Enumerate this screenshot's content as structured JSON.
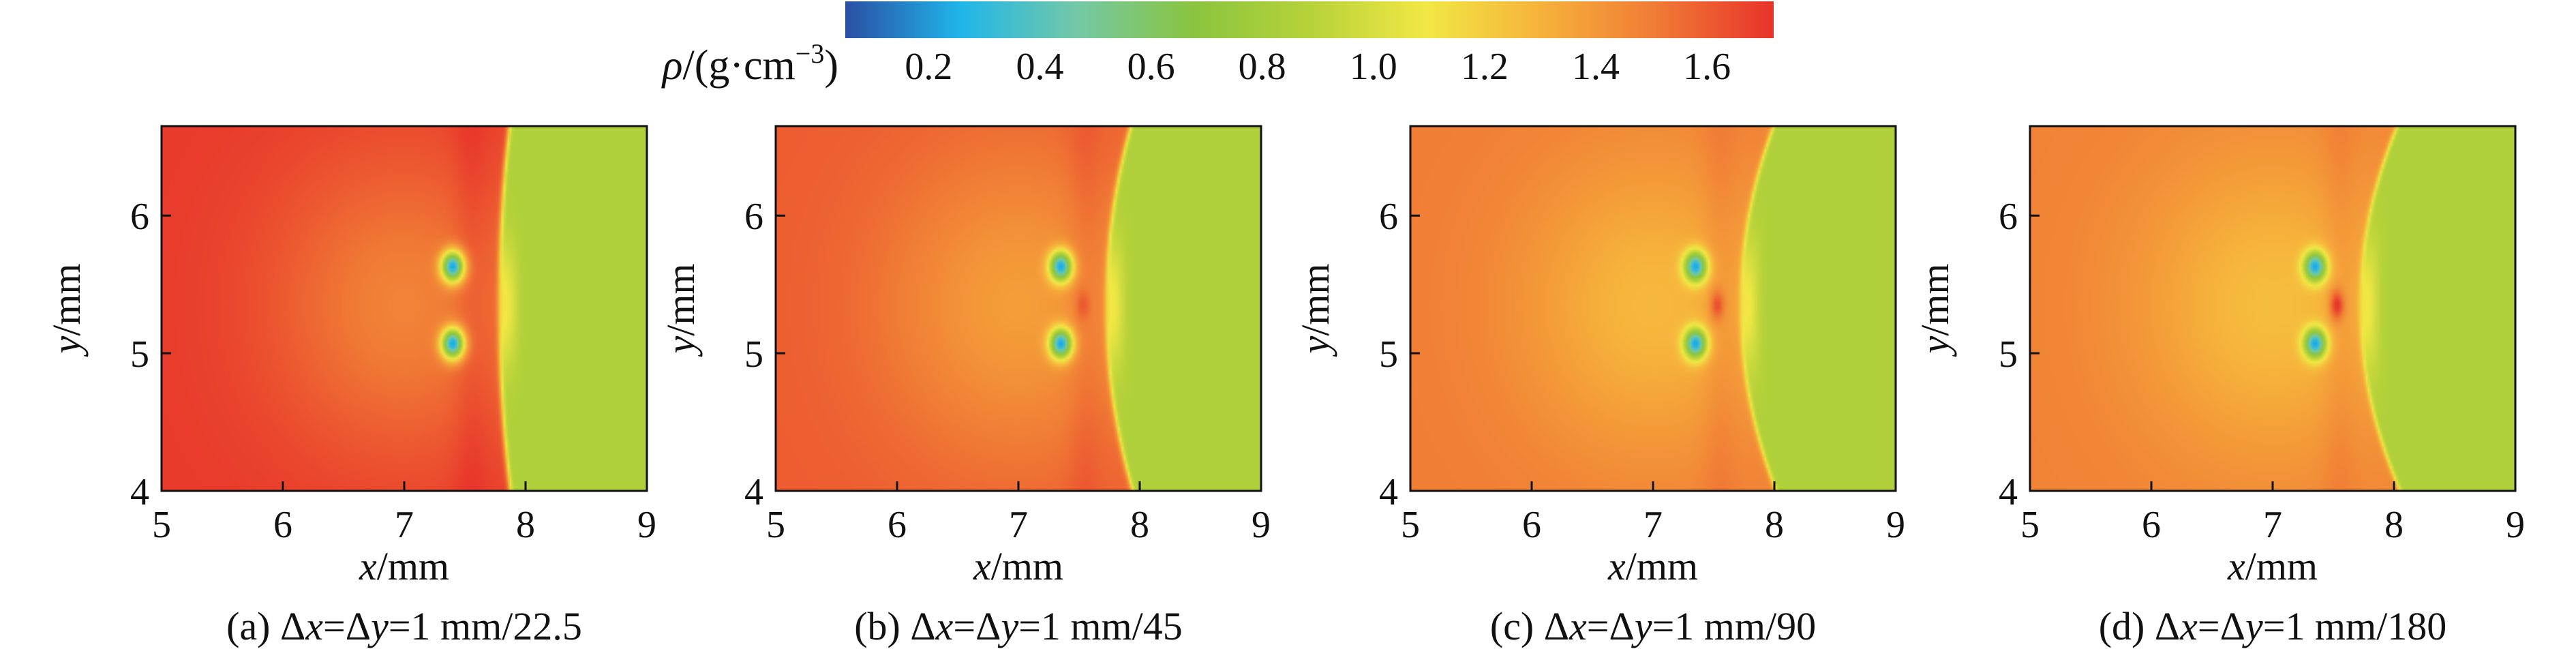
{
  "colorbar": {
    "label_symbol": "ρ",
    "label_unit_open": "/(g·cm",
    "label_exp": "−3",
    "label_unit_close": ")",
    "ticks": [
      "0.2",
      "0.4",
      "0.6",
      "0.8",
      "1.0",
      "1.2",
      "1.4",
      "1.6"
    ],
    "tick_values": [
      0.2,
      0.4,
      0.6,
      0.8,
      1.0,
      1.2,
      1.4,
      1.6
    ],
    "range": [
      0.05,
      1.72
    ],
    "stops": [
      "#2b4fa3",
      "#20b6ea",
      "#74c8a6",
      "#8ac43f",
      "#b6d239",
      "#f2e845",
      "#f6b23b",
      "#f07a35",
      "#e8332b"
    ]
  },
  "chart_data": [
    {
      "type": "heatmap",
      "caption_prefix": "(a) Δ",
      "caption_mid1": "=Δ",
      "caption_mid2": "=1 mm/22.5",
      "xlabel_var": "x",
      "xlabel_unit": "/mm",
      "ylabel_var": "y",
      "ylabel_unit": "/mm",
      "xlim": [
        5,
        9
      ],
      "ylim": [
        4,
        6.65
      ],
      "xticks": [
        "5",
        "6",
        "7",
        "8",
        "9"
      ],
      "xtick_values": [
        5,
        6,
        7,
        8,
        9
      ],
      "yticks": [
        "4",
        "5",
        "6"
      ],
      "ytick_values": [
        4,
        5,
        6
      ],
      "field": {
        "shocked_density": 1.7,
        "ambient_density": 0.85,
        "shock_front_x": 7.78,
        "front_curvature": 0.05,
        "cavity_x": 7.4,
        "cavity_y": 5.35,
        "jet_density": 0,
        "jet_strength": 0.0
      }
    },
    {
      "type": "heatmap",
      "caption_prefix": "(b) Δ",
      "caption_mid1": "=Δ",
      "caption_mid2": "=1 mm/45",
      "xlabel_var": "x",
      "xlabel_unit": "/mm",
      "ylabel_var": "y",
      "ylabel_unit": "/mm",
      "xlim": [
        5,
        9
      ],
      "ylim": [
        4,
        6.65
      ],
      "xticks": [
        "5",
        "6",
        "7",
        "8",
        "9"
      ],
      "xtick_values": [
        5,
        6,
        7,
        8,
        9
      ],
      "yticks": [
        "4",
        "5",
        "6"
      ],
      "ytick_values": [
        4,
        5,
        6
      ],
      "field": {
        "shocked_density": 1.6,
        "ambient_density": 0.85,
        "shock_front_x": 7.72,
        "front_curvature": 0.12,
        "cavity_x": 7.35,
        "cavity_y": 5.35,
        "jet_density": 1.7,
        "jet_strength": 0.6
      }
    },
    {
      "type": "heatmap",
      "caption_prefix": "(c) Δ",
      "caption_mid1": "=Δ",
      "caption_mid2": "=1 mm/90",
      "xlabel_var": "x",
      "xlabel_unit": "/mm",
      "ylabel_var": "y",
      "ylabel_unit": "/mm",
      "xlim": [
        5,
        9
      ],
      "ylim": [
        4,
        6.65
      ],
      "xticks": [
        "5",
        "6",
        "7",
        "8",
        "9"
      ],
      "xtick_values": [
        5,
        6,
        7,
        8,
        9
      ],
      "yticks": [
        "4",
        "5",
        "6"
      ],
      "ytick_values": [
        4,
        5,
        6
      ],
      "field": {
        "shocked_density": 1.5,
        "ambient_density": 0.85,
        "shock_front_x": 7.72,
        "front_curvature": 0.16,
        "cavity_x": 7.35,
        "cavity_y": 5.35,
        "jet_density": 1.7,
        "jet_strength": 0.8
      }
    },
    {
      "type": "heatmap",
      "caption_prefix": "(d) Δ",
      "caption_mid1": "=Δ",
      "caption_mid2": "=1 mm/180",
      "xlabel_var": "x",
      "xlabel_unit": "/mm",
      "ylabel_var": "y",
      "ylabel_unit": "/mm",
      "xlim": [
        5,
        9
      ],
      "ylim": [
        4,
        6.65
      ],
      "xticks": [
        "5",
        "6",
        "7",
        "8",
        "9"
      ],
      "xtick_values": [
        5,
        6,
        7,
        8,
        9
      ],
      "yticks": [
        "4",
        "5",
        "6"
      ],
      "ytick_values": [
        4,
        5,
        6
      ],
      "field": {
        "shocked_density": 1.48,
        "ambient_density": 0.85,
        "shock_front_x": 7.72,
        "front_curvature": 0.18,
        "cavity_x": 7.35,
        "cavity_y": 5.35,
        "jet_density": 1.72,
        "jet_strength": 1.0
      }
    }
  ]
}
